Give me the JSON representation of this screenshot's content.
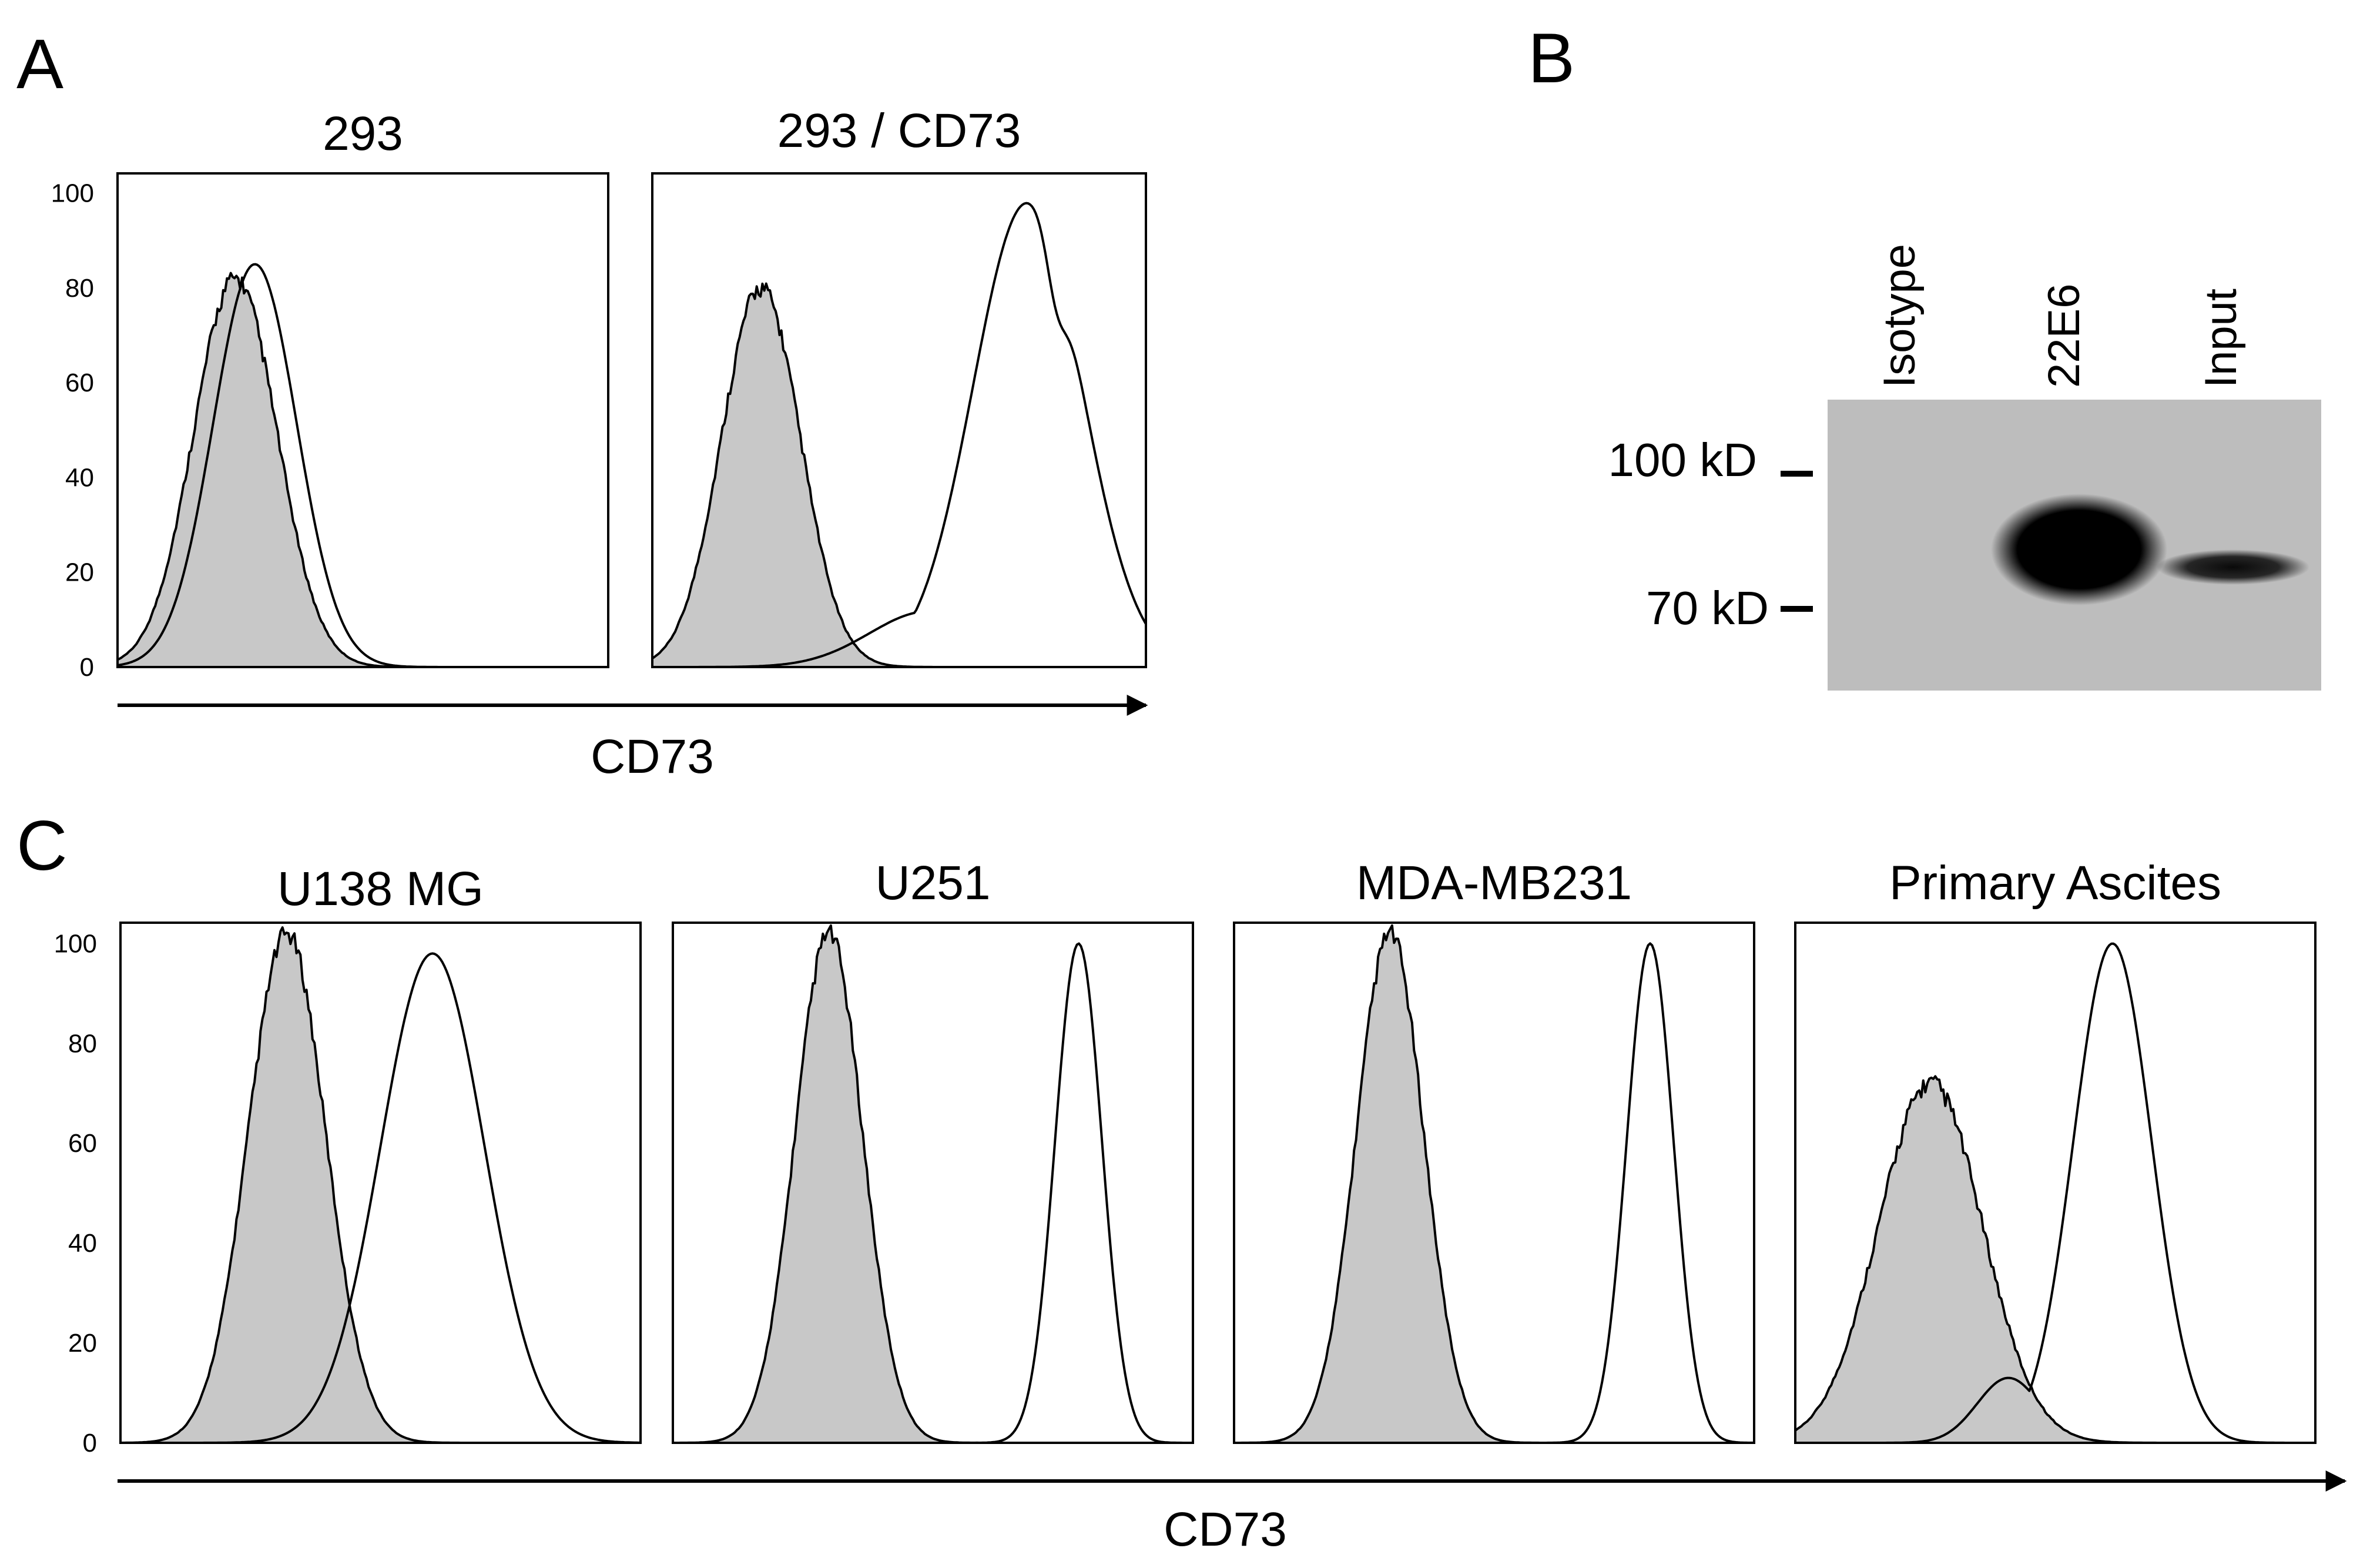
{
  "figure": {
    "panel_letters": {
      "a": "A",
      "b": "B",
      "c": "C"
    },
    "colors": {
      "isotype_fill": "#c8c8c8",
      "blot_background": "#bdbdbd",
      "band": "#000000"
    },
    "panel_a": {
      "x_axis_label": "CD73"
    },
    "panel_b": {
      "lanes": [
        "Isotype",
        "22E6",
        "Input"
      ],
      "markers": [
        "100 kD",
        "70 kD"
      ],
      "bands": [
        {
          "lane": "Isotype",
          "intensity": 0
        },
        {
          "lane": "22E6",
          "intensity": 1.0
        },
        {
          "lane": "Input",
          "intensity": 0.35
        }
      ]
    },
    "panel_c": {
      "x_axis_label": "CD73"
    }
  },
  "chart_data": [
    {
      "id": "A1",
      "type": "area",
      "title": "293",
      "xlabel": "CD73",
      "ylabel": "",
      "yticks": [
        0,
        20,
        40,
        60,
        80,
        100
      ],
      "ylim": [
        0,
        100
      ],
      "xlim": [
        0,
        1
      ],
      "series": [
        {
          "name": "isotype",
          "filled": true,
          "mu": 0.24,
          "sigma": 0.085,
          "height": 80
        },
        {
          "name": "CD73",
          "filled": false,
          "mu": 0.28,
          "sigma": 0.085,
          "height": 85
        }
      ]
    },
    {
      "id": "A2",
      "type": "area",
      "title": "293 / CD73",
      "xlabel": "CD73",
      "ylabel": "",
      "yticks": [
        0,
        20,
        40,
        60,
        80,
        100
      ],
      "ylim": [
        0,
        100
      ],
      "xlim": [
        0,
        1
      ],
      "series": [
        {
          "name": "isotype",
          "filled": true,
          "mu": 0.22,
          "sigma": 0.08,
          "height": 78
        },
        {
          "name": "CD73",
          "filled": false,
          "mu": 0.76,
          "sigma": 0.11,
          "height": 98,
          "shoulder": true
        }
      ]
    },
    {
      "id": "C1",
      "type": "area",
      "title": "U138 MG",
      "xlabel": "CD73",
      "ylabel": "",
      "yticks": [
        0,
        20,
        40,
        60,
        80,
        100
      ],
      "ylim": [
        0,
        100
      ],
      "xlim": [
        0,
        1
      ],
      "series": [
        {
          "name": "isotype",
          "filled": true,
          "mu": 0.32,
          "sigma": 0.075,
          "height": 100
        },
        {
          "name": "CD73",
          "filled": false,
          "mu": 0.6,
          "sigma": 0.1,
          "height": 98
        }
      ]
    },
    {
      "id": "C2",
      "type": "area",
      "title": "U251",
      "xlabel": "CD73",
      "ylabel": "",
      "yticks": [
        0,
        20,
        40,
        60,
        80,
        100
      ],
      "ylim": [
        0,
        100
      ],
      "xlim": [
        0,
        1
      ],
      "series": [
        {
          "name": "isotype",
          "filled": true,
          "mu": 0.3,
          "sigma": 0.065,
          "height": 100
        },
        {
          "name": "CD73",
          "filled": false,
          "mu": 0.78,
          "sigma": 0.045,
          "height": 100
        }
      ]
    },
    {
      "id": "C3",
      "type": "area",
      "title": "MDA-MB231",
      "xlabel": "CD73",
      "ylabel": "",
      "yticks": [
        0,
        20,
        40,
        60,
        80,
        100
      ],
      "ylim": [
        0,
        100
      ],
      "xlim": [
        0,
        1
      ],
      "series": [
        {
          "name": "isotype",
          "filled": true,
          "mu": 0.3,
          "sigma": 0.065,
          "height": 100
        },
        {
          "name": "CD73",
          "filled": false,
          "mu": 0.8,
          "sigma": 0.045,
          "height": 100
        }
      ]
    },
    {
      "id": "C4",
      "type": "area",
      "title": "Primary Ascites",
      "xlabel": "CD73",
      "ylabel": "",
      "yticks": [
        0,
        20,
        40,
        60,
        80,
        100
      ],
      "ylim": [
        0,
        100
      ],
      "xlim": [
        0,
        1
      ],
      "series": [
        {
          "name": "isotype",
          "filled": true,
          "mu": 0.26,
          "sigma": 0.1,
          "height": 70
        },
        {
          "name": "CD73",
          "filled": false,
          "mu": 0.61,
          "sigma": 0.075,
          "height": 100,
          "left_shoulder": true
        }
      ]
    }
  ]
}
